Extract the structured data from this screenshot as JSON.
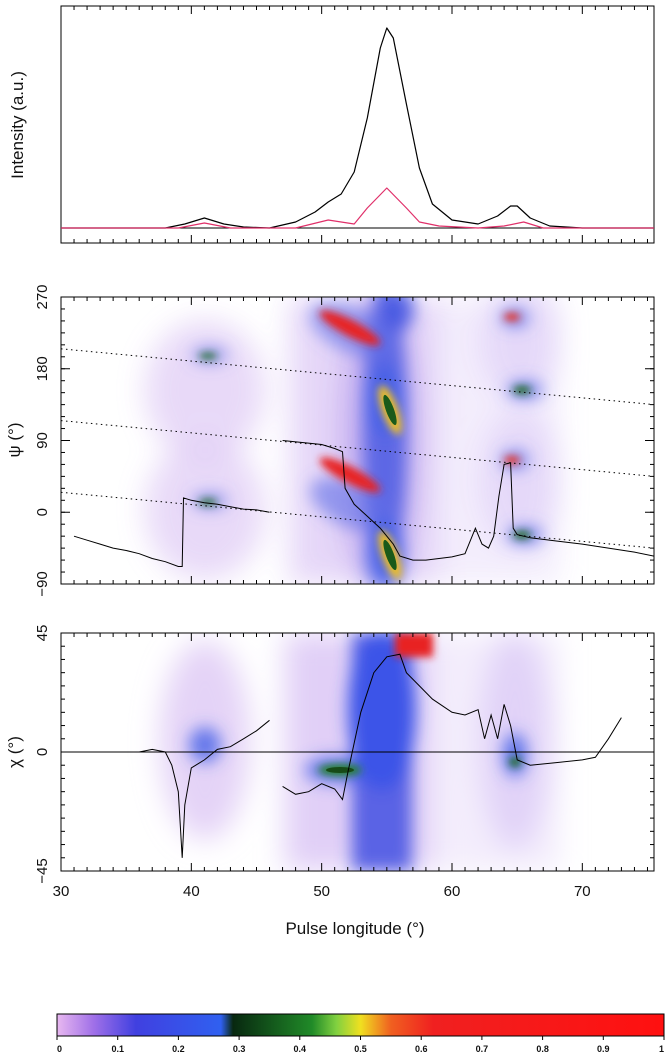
{
  "chart_data": [
    {
      "panel": "profile",
      "type": "line",
      "ylabel": "Intensity (a.u.)",
      "xlim": [
        30,
        75.5
      ],
      "series": [
        {
          "color": "#000000",
          "x": [
            30,
            38,
            39.5,
            41,
            42.5,
            44,
            46,
            48,
            49.5,
            50.5,
            51.5,
            52.5,
            53.5,
            54.5,
            55,
            55.5,
            56.5,
            57.5,
            58.5,
            60,
            62,
            63.5,
            64.5,
            65,
            66,
            67.5,
            70,
            75.5
          ],
          "y": [
            0,
            0,
            0.02,
            0.05,
            0.02,
            0.005,
            0,
            0.03,
            0.08,
            0.13,
            0.17,
            0.28,
            0.55,
            0.9,
            1.0,
            0.95,
            0.62,
            0.3,
            0.12,
            0.04,
            0.02,
            0.06,
            0.11,
            0.11,
            0.05,
            0.01,
            0,
            0
          ]
        },
        {
          "color": "#e0306a",
          "x": [
            30,
            39,
            41,
            43,
            48,
            50.5,
            51.5,
            52.5,
            53.5,
            55,
            56.5,
            57.5,
            59,
            62,
            64,
            65.5,
            67,
            75.5
          ],
          "y": [
            0,
            0,
            0.025,
            0,
            0,
            0.04,
            0.03,
            0.02,
            0.1,
            0.2,
            0.1,
            0.03,
            0.01,
            0,
            0.01,
            0.03,
            0,
            0
          ]
        }
      ]
    },
    {
      "panel": "psi",
      "type": "scatter",
      "ylabel": "ψ (°)",
      "ylim": [
        -90,
        270
      ],
      "yticks": [
        "-90",
        "0",
        "90",
        "180",
        "270"
      ],
      "xlim": [
        30,
        75.5
      ],
      "series": [
        {
          "color": "#000000",
          "style": "polyline",
          "x": [
            31,
            32,
            33,
            34,
            35,
            36,
            37,
            38,
            39,
            39.3,
            39.4,
            40,
            41,
            42,
            43,
            44,
            45,
            46
          ],
          "y": [
            -30,
            -35,
            -40,
            -45,
            -48,
            -52,
            -58,
            -62,
            -68,
            -68,
            18,
            15,
            12,
            10,
            7,
            4,
            3,
            0
          ]
        },
        {
          "color": "#000000",
          "style": "polyline",
          "x": [
            47,
            50,
            51,
            51.6,
            51.8,
            52.5,
            53.5,
            54.5,
            55.5,
            56,
            57,
            58,
            59,
            60,
            61,
            61.8,
            62.3,
            62.8,
            63.2,
            63.6,
            64,
            64.5,
            64.7,
            65,
            66,
            68,
            70,
            72,
            74,
            75.5
          ],
          "y": [
            90,
            85,
            80,
            76,
            30,
            10,
            -5,
            -20,
            -40,
            -55,
            -60,
            -60,
            -58,
            -56,
            -52,
            -20,
            -40,
            -45,
            -30,
            20,
            60,
            62,
            -20,
            -28,
            -32,
            -36,
            -40,
            -45,
            -50,
            -55
          ]
        },
        {
          "color": "#000000",
          "style": "dotted",
          "x": [
            30,
            75.5
          ],
          "y": [
            25,
            -45
          ]
        },
        {
          "color": "#000000",
          "style": "dotted",
          "x": [
            30,
            75.5
          ],
          "y": [
            115,
            45
          ]
        },
        {
          "color": "#000000",
          "style": "dotted",
          "x": [
            30,
            75.5
          ],
          "y": [
            205,
            135
          ]
        }
      ]
    },
    {
      "panel": "chi",
      "type": "scatter",
      "ylabel": "χ (°)",
      "ylim": [
        -45,
        45
      ],
      "yticks": [
        "-45",
        "0",
        "45"
      ],
      "xlabel": "Pulse longitude (°)",
      "xticks": [
        "30",
        "40",
        "50",
        "60",
        "70"
      ],
      "xlim": [
        30,
        75.5
      ],
      "series": [
        {
          "color": "#000000",
          "style": "polyline",
          "x": [
            30,
            36,
            37,
            38,
            38.5,
            39,
            39.3,
            39.5,
            40,
            41,
            42,
            43,
            44,
            45,
            46
          ],
          "y": [
            0,
            0,
            1,
            0,
            -5,
            -15,
            -40,
            -20,
            -6,
            -3,
            1,
            2,
            5,
            8,
            12
          ]
        },
        {
          "color": "#000000",
          "style": "polyline",
          "x": [
            47,
            48,
            49,
            50,
            51,
            51.6,
            52,
            53,
            54,
            55,
            56,
            56.5,
            57.5,
            58.5,
            60,
            61,
            62,
            62.5,
            63,
            63.5,
            64,
            64.5,
            65,
            66,
            68,
            70,
            71,
            72,
            73
          ],
          "y": [
            -13,
            -16,
            -15,
            -12,
            -14,
            -18,
            -8,
            15,
            30,
            36,
            37,
            30,
            25,
            20,
            15,
            14,
            16,
            5,
            14,
            5,
            18,
            10,
            -3,
            -5,
            -4,
            -3,
            -2,
            5,
            13
          ]
        }
      ]
    },
    {
      "panel": "colorbar",
      "type": "heatmap",
      "ticks": [
        "0",
        "0.1",
        "0.2",
        "0.3",
        "0.4",
        "0.5",
        "0.6",
        "0.7",
        "0.8",
        "0.9",
        "1"
      ]
    }
  ]
}
